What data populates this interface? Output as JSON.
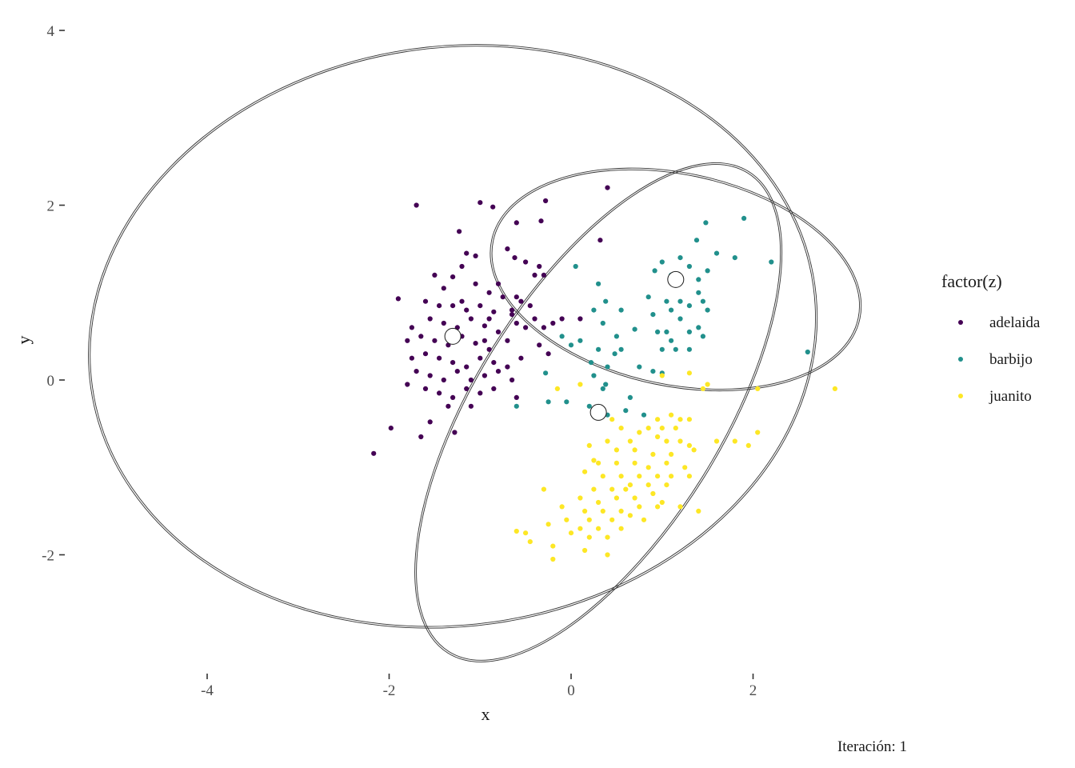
{
  "chart_data": {
    "type": "scatter",
    "xlabel": "x",
    "ylabel": "y",
    "caption": "Iteración: 1",
    "xlim": [
      -5.2,
      3.0
    ],
    "ylim": [
      -3.3,
      4.2
    ],
    "x_ticks": [
      -4,
      -2,
      0,
      2
    ],
    "y_ticks": [
      -2,
      0,
      2,
      4
    ],
    "x_tick_labels": [
      "-4",
      "-2",
      "0",
      "2"
    ],
    "y_tick_labels": [
      "-2",
      "0",
      "2",
      "4"
    ],
    "grid": false,
    "legend": {
      "title": "factor(z)",
      "position": "right",
      "entries": [
        "adelaida",
        "barbijo",
        "juanito"
      ]
    },
    "colors": {
      "adelaida": "#440154",
      "barbijo": "#21908C",
      "juanito": "#FDE725",
      "ellipse": "#333333",
      "center_fill": "#ffffff"
    },
    "series": [
      {
        "name": "adelaida",
        "color": "#440154",
        "points": [
          [
            -1.7,
            2.0
          ],
          [
            -1.0,
            2.03
          ],
          [
            -0.86,
            1.98
          ],
          [
            -0.28,
            2.05
          ],
          [
            0.4,
            2.2
          ],
          [
            -1.23,
            1.7
          ],
          [
            -0.6,
            1.8
          ],
          [
            -0.33,
            1.82
          ],
          [
            -0.7,
            1.5
          ],
          [
            -0.62,
            1.4
          ],
          [
            0.32,
            1.6
          ],
          [
            -1.15,
            1.45
          ],
          [
            -1.05,
            1.42
          ],
          [
            -0.5,
            1.35
          ],
          [
            -0.35,
            1.3
          ],
          [
            -1.2,
            1.3
          ],
          [
            -1.5,
            1.2
          ],
          [
            -1.3,
            1.18
          ],
          [
            -0.4,
            1.2
          ],
          [
            -0.3,
            1.2
          ],
          [
            -1.05,
            1.1
          ],
          [
            -0.9,
            1.0
          ],
          [
            -0.75,
            0.95
          ],
          [
            -0.55,
            0.9
          ],
          [
            -1.9,
            0.93
          ],
          [
            -1.6,
            0.9
          ],
          [
            -1.45,
            0.85
          ],
          [
            -1.3,
            0.85
          ],
          [
            -1.15,
            0.8
          ],
          [
            -1.0,
            0.85
          ],
          [
            -0.85,
            0.78
          ],
          [
            -0.65,
            0.8
          ],
          [
            -1.75,
            0.6
          ],
          [
            -1.55,
            0.7
          ],
          [
            -1.4,
            0.65
          ],
          [
            -1.25,
            0.6
          ],
          [
            -1.1,
            0.7
          ],
          [
            -0.95,
            0.62
          ],
          [
            -0.8,
            0.55
          ],
          [
            -0.6,
            0.65
          ],
          [
            -1.8,
            0.45
          ],
          [
            -1.65,
            0.5
          ],
          [
            -1.5,
            0.45
          ],
          [
            -1.35,
            0.4
          ],
          [
            -1.2,
            0.5
          ],
          [
            -1.05,
            0.42
          ],
          [
            -0.9,
            0.35
          ],
          [
            -0.7,
            0.45
          ],
          [
            -0.5,
            0.6
          ],
          [
            -0.4,
            0.7
          ],
          [
            -0.3,
            0.6
          ],
          [
            -0.2,
            0.65
          ],
          [
            -0.1,
            0.7
          ],
          [
            0.1,
            0.7
          ],
          [
            -0.35,
            0.4
          ],
          [
            -0.25,
            0.3
          ],
          [
            -1.6,
            0.3
          ],
          [
            -1.45,
            0.25
          ],
          [
            -1.3,
            0.2
          ],
          [
            -1.15,
            0.15
          ],
          [
            -1.0,
            0.25
          ],
          [
            -0.85,
            0.2
          ],
          [
            -0.7,
            0.15
          ],
          [
            -0.55,
            0.25
          ],
          [
            -1.7,
            0.1
          ],
          [
            -1.55,
            0.05
          ],
          [
            -1.4,
            0.0
          ],
          [
            -1.25,
            0.1
          ],
          [
            -1.1,
            0.0
          ],
          [
            -0.95,
            0.05
          ],
          [
            -0.8,
            0.1
          ],
          [
            -0.65,
            0.0
          ],
          [
            -1.8,
            -0.05
          ],
          [
            -1.6,
            -0.1
          ],
          [
            -1.45,
            -0.15
          ],
          [
            -1.3,
            -0.2
          ],
          [
            -1.15,
            -0.1
          ],
          [
            -1.0,
            -0.15
          ],
          [
            -0.85,
            -0.1
          ],
          [
            -0.6,
            -0.2
          ],
          [
            -1.35,
            -0.3
          ],
          [
            -1.1,
            -0.3
          ],
          [
            -1.55,
            -0.48
          ],
          [
            -1.65,
            -0.65
          ],
          [
            -1.28,
            -0.6
          ],
          [
            -1.98,
            -0.55
          ],
          [
            -2.17,
            -0.84
          ],
          [
            -1.75,
            0.25
          ],
          [
            -0.45,
            0.85
          ],
          [
            -0.6,
            0.95
          ],
          [
            -0.9,
            0.7
          ],
          [
            -1.2,
            0.9
          ],
          [
            -1.4,
            1.05
          ],
          [
            -0.8,
            1.1
          ],
          [
            -0.65,
            0.75
          ],
          [
            -0.95,
            0.45
          ]
        ]
      },
      {
        "name": "barbijo",
        "color": "#21908C",
        "points": [
          [
            1.9,
            1.85
          ],
          [
            1.48,
            1.8
          ],
          [
            1.38,
            1.6
          ],
          [
            1.6,
            1.45
          ],
          [
            1.8,
            1.4
          ],
          [
            2.2,
            1.35
          ],
          [
            1.2,
            1.4
          ],
          [
            1.0,
            1.35
          ],
          [
            1.3,
            1.3
          ],
          [
            0.05,
            1.3
          ],
          [
            1.5,
            1.25
          ],
          [
            1.1,
            1.2
          ],
          [
            0.92,
            1.25
          ],
          [
            1.4,
            1.15
          ],
          [
            0.3,
            1.1
          ],
          [
            1.4,
            1.0
          ],
          [
            1.05,
            0.9
          ],
          [
            0.38,
            0.9
          ],
          [
            1.45,
            0.9
          ],
          [
            1.2,
            0.9
          ],
          [
            1.3,
            0.85
          ],
          [
            1.1,
            0.8
          ],
          [
            1.5,
            0.8
          ],
          [
            0.25,
            0.8
          ],
          [
            0.55,
            0.8
          ],
          [
            0.9,
            0.75
          ],
          [
            1.2,
            0.7
          ],
          [
            0.35,
            0.65
          ],
          [
            1.4,
            0.6
          ],
          [
            0.7,
            0.58
          ],
          [
            0.95,
            0.55
          ],
          [
            1.05,
            0.55
          ],
          [
            1.3,
            0.55
          ],
          [
            0.5,
            0.5
          ],
          [
            -0.1,
            0.5
          ],
          [
            1.45,
            0.5
          ],
          [
            0.1,
            0.45
          ],
          [
            0.0,
            0.4
          ],
          [
            0.3,
            0.35
          ],
          [
            0.55,
            0.35
          ],
          [
            1.0,
            0.35
          ],
          [
            0.48,
            0.3
          ],
          [
            1.15,
            0.35
          ],
          [
            1.3,
            0.35
          ],
          [
            2.6,
            0.32
          ],
          [
            0.22,
            0.2
          ],
          [
            0.4,
            0.15
          ],
          [
            0.75,
            0.15
          ],
          [
            0.25,
            0.05
          ],
          [
            0.9,
            0.1
          ],
          [
            1.0,
            0.08
          ],
          [
            -0.28,
            0.08
          ],
          [
            0.38,
            -0.05
          ],
          [
            -0.25,
            -0.25
          ],
          [
            -0.05,
            -0.25
          ],
          [
            0.2,
            -0.3
          ],
          [
            -0.6,
            -0.3
          ],
          [
            0.65,
            -0.2
          ],
          [
            0.35,
            -0.1
          ],
          [
            0.6,
            -0.35
          ],
          [
            0.8,
            -0.4
          ],
          [
            0.4,
            -0.4
          ],
          [
            1.1,
            0.45
          ],
          [
            0.85,
            0.95
          ]
        ]
      },
      {
        "name": "juanito",
        "color": "#FDE725",
        "points": [
          [
            1.3,
            0.08
          ],
          [
            1.0,
            0.05
          ],
          [
            1.5,
            -0.05
          ],
          [
            1.45,
            -0.1
          ],
          [
            2.05,
            -0.1
          ],
          [
            2.9,
            -0.1
          ],
          [
            0.95,
            -0.45
          ],
          [
            1.1,
            -0.4
          ],
          [
            1.2,
            -0.45
          ],
          [
            1.3,
            -0.45
          ],
          [
            0.85,
            -0.55
          ],
          [
            1.0,
            -0.55
          ],
          [
            1.15,
            -0.55
          ],
          [
            0.75,
            -0.6
          ],
          [
            0.55,
            -0.55
          ],
          [
            0.95,
            -0.65
          ],
          [
            1.05,
            -0.7
          ],
          [
            1.2,
            -0.7
          ],
          [
            1.3,
            -0.75
          ],
          [
            1.6,
            -0.7
          ],
          [
            1.8,
            -0.7
          ],
          [
            1.95,
            -0.75
          ],
          [
            2.05,
            -0.6
          ],
          [
            0.2,
            -0.75
          ],
          [
            0.4,
            -0.7
          ],
          [
            0.5,
            -0.8
          ],
          [
            0.7,
            -0.8
          ],
          [
            0.9,
            -0.85
          ],
          [
            1.1,
            -0.85
          ],
          [
            1.35,
            -0.8
          ],
          [
            0.3,
            -0.95
          ],
          [
            0.5,
            -0.95
          ],
          [
            0.7,
            -0.95
          ],
          [
            0.85,
            -1.0
          ],
          [
            1.05,
            -0.95
          ],
          [
            1.25,
            -1.0
          ],
          [
            0.15,
            -1.05
          ],
          [
            0.35,
            -1.1
          ],
          [
            0.55,
            -1.1
          ],
          [
            0.75,
            -1.1
          ],
          [
            0.95,
            -1.1
          ],
          [
            1.1,
            -1.1
          ],
          [
            1.3,
            -1.1
          ],
          [
            0.25,
            -1.25
          ],
          [
            0.45,
            -1.25
          ],
          [
            0.65,
            -1.2
          ],
          [
            0.85,
            -1.2
          ],
          [
            1.05,
            -1.2
          ],
          [
            -0.3,
            -1.25
          ],
          [
            0.1,
            -1.35
          ],
          [
            0.3,
            -1.4
          ],
          [
            0.5,
            -1.35
          ],
          [
            0.7,
            -1.35
          ],
          [
            0.9,
            -1.3
          ],
          [
            -0.1,
            -1.45
          ],
          [
            0.15,
            -1.5
          ],
          [
            0.35,
            -1.5
          ],
          [
            0.55,
            -1.5
          ],
          [
            0.75,
            -1.45
          ],
          [
            0.95,
            -1.45
          ],
          [
            -0.05,
            -1.6
          ],
          [
            0.2,
            -1.6
          ],
          [
            0.45,
            -1.6
          ],
          [
            0.65,
            -1.55
          ],
          [
            1.2,
            -1.45
          ],
          [
            1.4,
            -1.5
          ],
          [
            -0.25,
            -1.65
          ],
          [
            0.1,
            -1.7
          ],
          [
            0.3,
            -1.7
          ],
          [
            0.55,
            -1.7
          ],
          [
            -0.5,
            -1.75
          ],
          [
            -0.45,
            -1.85
          ],
          [
            0.2,
            -1.8
          ],
          [
            0.4,
            -1.8
          ],
          [
            -0.2,
            -1.9
          ],
          [
            0.15,
            -1.95
          ],
          [
            0.4,
            -2.0
          ],
          [
            -0.2,
            -2.05
          ],
          [
            0.0,
            -1.75
          ],
          [
            -0.6,
            -1.73
          ],
          [
            0.8,
            -1.6
          ],
          [
            0.6,
            -1.25
          ],
          [
            1.0,
            -1.4
          ],
          [
            0.25,
            -0.92
          ],
          [
            0.1,
            -0.05
          ],
          [
            -0.15,
            -0.1
          ],
          [
            0.45,
            -0.45
          ],
          [
            0.65,
            -0.7
          ]
        ]
      }
    ],
    "ellipses": [
      {
        "cx": -1.3,
        "cy": 0.5,
        "rx": 4.0,
        "ry": 3.3,
        "angle_deg": 8
      },
      {
        "cx": 0.3,
        "cy": -0.37,
        "rx": 3.1,
        "ry": 1.4,
        "angle_deg": 58
      },
      {
        "cx": 1.15,
        "cy": 1.15,
        "rx": 2.05,
        "ry": 1.2,
        "angle_deg": -12
      }
    ],
    "centers": [
      {
        "x": -1.3,
        "y": 0.5
      },
      {
        "x": 0.3,
        "y": -0.37
      },
      {
        "x": 1.15,
        "y": 1.15
      }
    ]
  }
}
